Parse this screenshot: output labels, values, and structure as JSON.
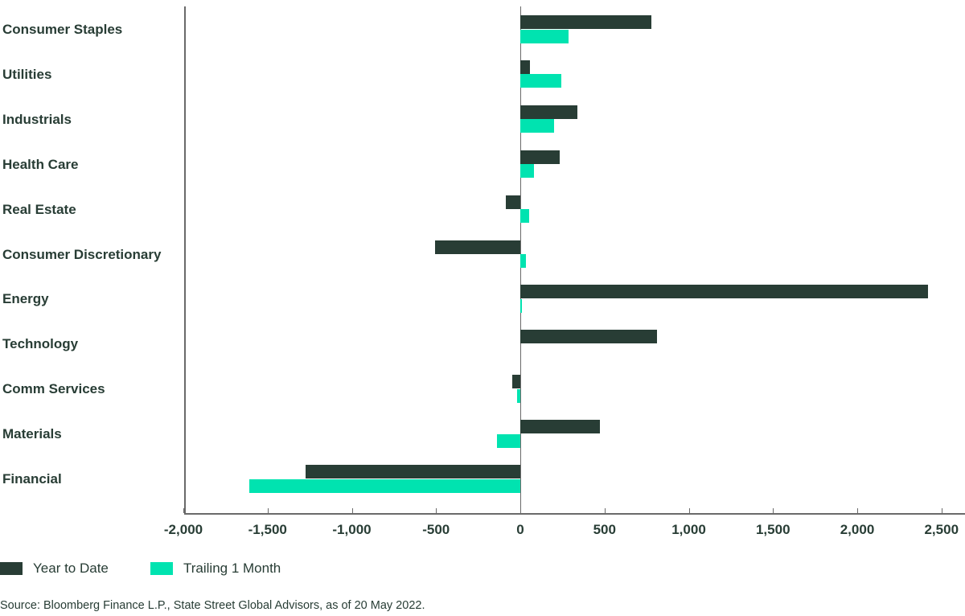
{
  "chart_data": {
    "type": "bar",
    "orientation": "horizontal",
    "title": "",
    "xlabel": "",
    "ylabel": "",
    "xlim": [
      -2000,
      2500
    ],
    "x_ticks": [
      "-2,000",
      "-1,500",
      "-1,000",
      "-500",
      "0",
      "500",
      "1,000",
      "1,500",
      "2,000",
      "2,500"
    ],
    "categories": [
      "Consumer Staples",
      "Utilities",
      "Industrials",
      "Health Care",
      "Real Estate",
      "Consumer Discretionary",
      "Energy",
      "Technology",
      "Comm Services",
      "Materials",
      "Financial"
    ],
    "series": [
      {
        "name": "Year to Date",
        "color": "#283d35",
        "values": [
          780,
          57,
          338,
          233,
          -86,
          -505,
          2420,
          810,
          -48,
          471,
          -1276
        ]
      },
      {
        "name": "Trailing 1 Month",
        "color": "#00e3b0",
        "values": [
          285,
          243,
          200,
          81,
          52,
          33,
          5,
          0,
          -19,
          -138,
          -1610
        ]
      }
    ],
    "legend_position": "bottom-left",
    "grid": false
  },
  "legend": {
    "ytd": "Year to Date",
    "t1m": "Trailing 1 Month"
  },
  "source": "Source: Bloomberg Finance L.P., State Street Global Advisors, as of 20 May 2022."
}
